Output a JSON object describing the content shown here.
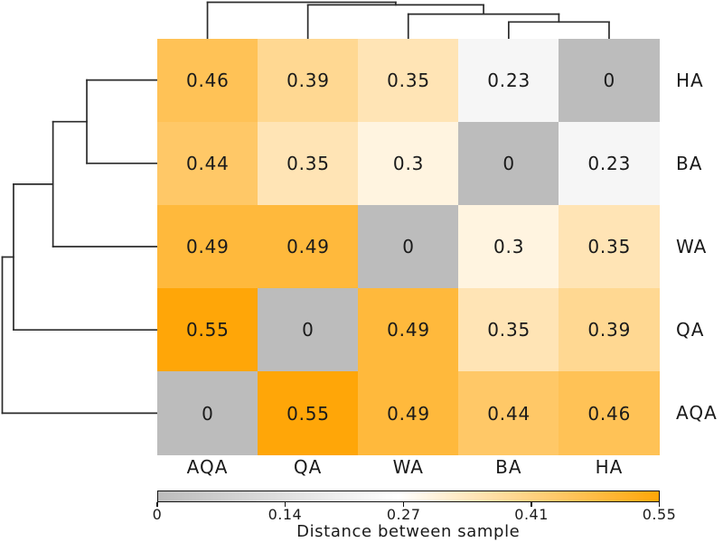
{
  "figure": {
    "kind": "clustered-heatmap",
    "background": "#ffffff",
    "text_color": "#1a1a1a",
    "dendrogram_line_color": "#2b2b2b"
  },
  "chart_data": {
    "type": "heatmap",
    "rows": [
      "HA",
      "BA",
      "WA",
      "QA",
      "AQA"
    ],
    "columns": [
      "AQA",
      "QA",
      "WA",
      "BA",
      "HA"
    ],
    "values": [
      [
        0.46,
        0.39,
        0.35,
        0.23,
        0
      ],
      [
        0.44,
        0.35,
        0.3,
        0,
        0.23
      ],
      [
        0.49,
        0.49,
        0,
        0.3,
        0.35
      ],
      [
        0.55,
        0,
        0.49,
        0.35,
        0.39
      ],
      [
        0,
        0.55,
        0.49,
        0.44,
        0.46
      ]
    ],
    "labels": [
      [
        "0.46",
        "0.39",
        "0.35",
        "0.23",
        "0"
      ],
      [
        "0.44",
        "0.35",
        "0.3",
        "0",
        "0.23"
      ],
      [
        "0.49",
        "0.49",
        "0",
        "0.3",
        "0.35"
      ],
      [
        "0.55",
        "0",
        "0.49",
        "0.35",
        "0.39"
      ],
      [
        "0",
        "0.55",
        "0.49",
        "0.44",
        "0.46"
      ]
    ],
    "value_min": 0,
    "value_max": 0.55,
    "colormap": {
      "low": "#bcbcbc",
      "mid": "#ffffff",
      "high": "#ffa608",
      "mid_point": 0.48
    },
    "colorbar": {
      "label": "Distance between sample",
      "tick_labels": [
        "0",
        "0.14",
        "0.27",
        "0.41",
        "0.55"
      ],
      "tick_values": [
        0,
        0.14,
        0.27,
        0.41,
        0.55
      ]
    },
    "dendrogram": {
      "shown_on": [
        "top",
        "left"
      ],
      "tree": {
        "h": 0.55,
        "c": [
          "AQA",
          {
            "h": 0.51,
            "c": [
              "QA",
              {
                "h": 0.37,
                "c": [
                  "WA",
                  {
                    "h": 0.25,
                    "c": [
                      "BA",
                      "HA"
                    ]
                  }
                ]
              }
            ]
          }
        ]
      }
    }
  }
}
